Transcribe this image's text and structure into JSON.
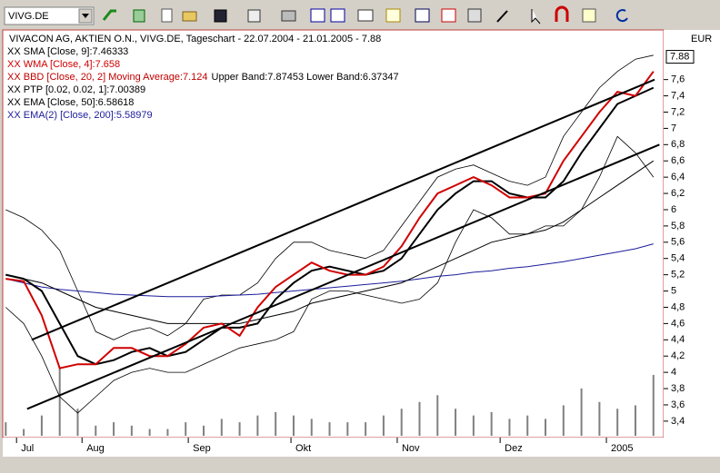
{
  "toolbar": {
    "symbol": "VIVG.DE"
  },
  "chart_data": {
    "type": "line",
    "title": "VIVACON AG,  AKTIEN O.N., VIVG.DE, Tageschart - 22.07.2004 - 21.01.2005 - 7.88",
    "currency": "EUR",
    "last_price": 7.88,
    "last_price_color": "#000000",
    "annotations": [
      {
        "text": "XX BBD [Close, 20, 2] Moving Average:7.124",
        "color": "#c00000"
      },
      {
        "text": "Upper Band:7.87453 Lower Band:6.37347",
        "color": "#000000"
      },
      {
        "text": "XX PTP [0.02, 0.02, 1]:7.00389",
        "color": "#000000"
      }
    ],
    "xlim": [
      -1.8,
      25.6
    ],
    "xticks": [
      {
        "value": -1.3,
        "label": "Jul"
      },
      {
        "value": 1.43,
        "label": "Aug"
      },
      {
        "value": 5.86,
        "label": "Sep"
      },
      {
        "value": 10.14,
        "label": "Okt"
      },
      {
        "value": 14.57,
        "label": "Nov"
      },
      {
        "value": 18.86,
        "label": "Dez"
      },
      {
        "value": 23.29,
        "label": "2005"
      }
    ],
    "ylim": [
      3.22,
      8.21
    ],
    "yticks": [
      {
        "value": 3.4,
        "label": "3,4"
      },
      {
        "value": 3.6,
        "label": "3,6"
      },
      {
        "value": 3.8,
        "label": "3,8"
      },
      4,
      {
        "value": 4.2,
        "label": "4,2"
      },
      {
        "value": 4.4,
        "label": "4,4"
      },
      {
        "value": 4.6,
        "label": "4,6"
      },
      {
        "value": 4.8,
        "label": "4,8"
      },
      5,
      {
        "value": 5.2,
        "label": "5,2"
      },
      {
        "value": 5.4,
        "label": "5,4"
      },
      {
        "value": 5.6,
        "label": "5,6"
      },
      {
        "value": 5.8,
        "label": "5,8"
      },
      6,
      {
        "value": 6.2,
        "label": "6,2"
      },
      {
        "value": 6.4,
        "label": "6,4"
      },
      {
        "value": 6.6,
        "label": "6,6"
      },
      {
        "value": 6.8,
        "label": "6,8"
      },
      7,
      {
        "value": 7.2,
        "label": "7,2"
      },
      {
        "value": 7.4,
        "label": "7,4"
      },
      {
        "value": 7.6,
        "label": "7,6"
      }
    ],
    "y2lim": [
      0,
      600
    ],
    "grid": false,
    "x": [
      -1.75,
      -1,
      -0.25,
      0.5,
      1.25,
      2,
      2.75,
      3.5,
      4.25,
      5,
      5.75,
      6.5,
      7.25,
      8,
      8.75,
      9.5,
      10.25,
      11,
      11.75,
      12.5,
      13.25,
      14,
      14.75,
      15.5,
      16.25,
      17,
      17.75,
      18.5,
      19.25,
      20,
      20.75,
      21.5,
      22.25,
      23,
      23.75,
      24.5,
      25.25
    ],
    "series": [
      {
        "axis": "y2",
        "kind": "bar",
        "color": "#808080",
        "values": [
          20,
          10,
          30,
          100,
          40,
          15,
          20,
          15,
          10,
          10,
          20,
          15,
          25,
          20,
          30,
          35,
          30,
          25,
          20,
          20,
          20,
          30,
          40,
          50,
          60,
          40,
          30,
          35,
          25,
          30,
          25,
          45,
          70,
          50,
          40,
          45,
          90
        ]
      },
      {
        "kind": "line",
        "color": "#000000",
        "width": 0.8,
        "values": [
          6.0,
          5.9,
          5.75,
          5.5,
          5.0,
          4.5,
          4.4,
          4.5,
          4.55,
          4.45,
          4.6,
          4.9,
          4.95,
          4.95,
          5.1,
          5.4,
          5.6,
          5.6,
          5.5,
          5.45,
          5.4,
          5.5,
          5.8,
          6.1,
          6.4,
          6.5,
          6.55,
          6.45,
          6.35,
          6.3,
          6.4,
          6.9,
          7.2,
          7.5,
          7.7,
          7.85,
          7.9
        ]
      },
      {
        "kind": "line",
        "color": "#000000",
        "width": 0.8,
        "values": [
          4.8,
          4.6,
          4.2,
          3.7,
          3.5,
          3.7,
          3.9,
          4.0,
          4.05,
          4.0,
          4.0,
          4.1,
          4.2,
          4.3,
          4.35,
          4.4,
          4.5,
          4.9,
          5.0,
          5.0,
          4.95,
          4.9,
          4.85,
          4.9,
          5.1,
          5.6,
          6.0,
          5.9,
          5.7,
          5.7,
          5.8,
          5.8,
          6.0,
          6.4,
          6.9,
          6.7,
          6.4
        ]
      },
      {
        "name": "XX EMA(2) [Close, 200]:5.58979",
        "kind": "line",
        "color": "#1c1c9c",
        "width": 1,
        "values": [
          5.15,
          5.1,
          5.05,
          5.02,
          5.0,
          4.98,
          4.96,
          4.95,
          4.94,
          4.93,
          4.93,
          4.93,
          4.94,
          4.95,
          4.96,
          4.98,
          5.0,
          5.02,
          5.04,
          5.06,
          5.08,
          5.1,
          5.12,
          5.15,
          5.18,
          5.2,
          5.23,
          5.25,
          5.28,
          5.3,
          5.33,
          5.36,
          5.4,
          5.44,
          5.48,
          5.52,
          5.58
        ]
      },
      {
        "name": "XX EMA [Close, 50]:6.58618",
        "kind": "line",
        "color": "#000000",
        "width": 1,
        "values": [
          5.2,
          5.15,
          5.1,
          5.0,
          4.9,
          4.8,
          4.75,
          4.7,
          4.65,
          4.6,
          4.6,
          4.6,
          4.6,
          4.6,
          4.65,
          4.7,
          4.75,
          4.85,
          4.9,
          4.95,
          5.0,
          5.05,
          5.1,
          5.2,
          5.3,
          5.4,
          5.5,
          5.6,
          5.65,
          5.7,
          5.75,
          5.85,
          6.0,
          6.15,
          6.3,
          6.45,
          6.6
        ]
      },
      {
        "name": "XX SMA [Close, 9]:7.46333",
        "kind": "line",
        "color": "#000000",
        "width": 2,
        "values": [
          5.2,
          5.15,
          5.0,
          4.6,
          4.2,
          4.1,
          4.15,
          4.25,
          4.3,
          4.2,
          4.25,
          4.4,
          4.55,
          4.55,
          4.6,
          4.9,
          5.1,
          5.25,
          5.3,
          5.25,
          5.2,
          5.25,
          5.4,
          5.7,
          6.0,
          6.2,
          6.35,
          6.35,
          6.2,
          6.15,
          6.15,
          6.35,
          6.7,
          7.0,
          7.3,
          7.4,
          7.5
        ]
      },
      {
        "name": "XX WMA [Close, 4]:7.658",
        "kind": "line",
        "color": "#d00000",
        "width": 2,
        "values": [
          5.15,
          5.12,
          4.7,
          4.05,
          4.1,
          4.1,
          4.3,
          4.3,
          4.2,
          4.2,
          4.35,
          4.55,
          4.6,
          4.45,
          4.8,
          5.05,
          5.2,
          5.35,
          5.25,
          5.2,
          5.2,
          5.3,
          5.55,
          5.9,
          6.2,
          6.3,
          6.4,
          6.3,
          6.15,
          6.15,
          6.2,
          6.6,
          6.9,
          7.2,
          7.45,
          7.4,
          7.7
        ]
      }
    ],
    "trendlines": [
      {
        "color": "#000000",
        "x": [
          -0.67,
          25.3
        ],
        "values": [
          4.4,
          7.6
        ]
      },
      {
        "color": "#000000",
        "x": [
          -0.86,
          25.5
        ],
        "values": [
          3.55,
          6.8
        ]
      }
    ]
  }
}
